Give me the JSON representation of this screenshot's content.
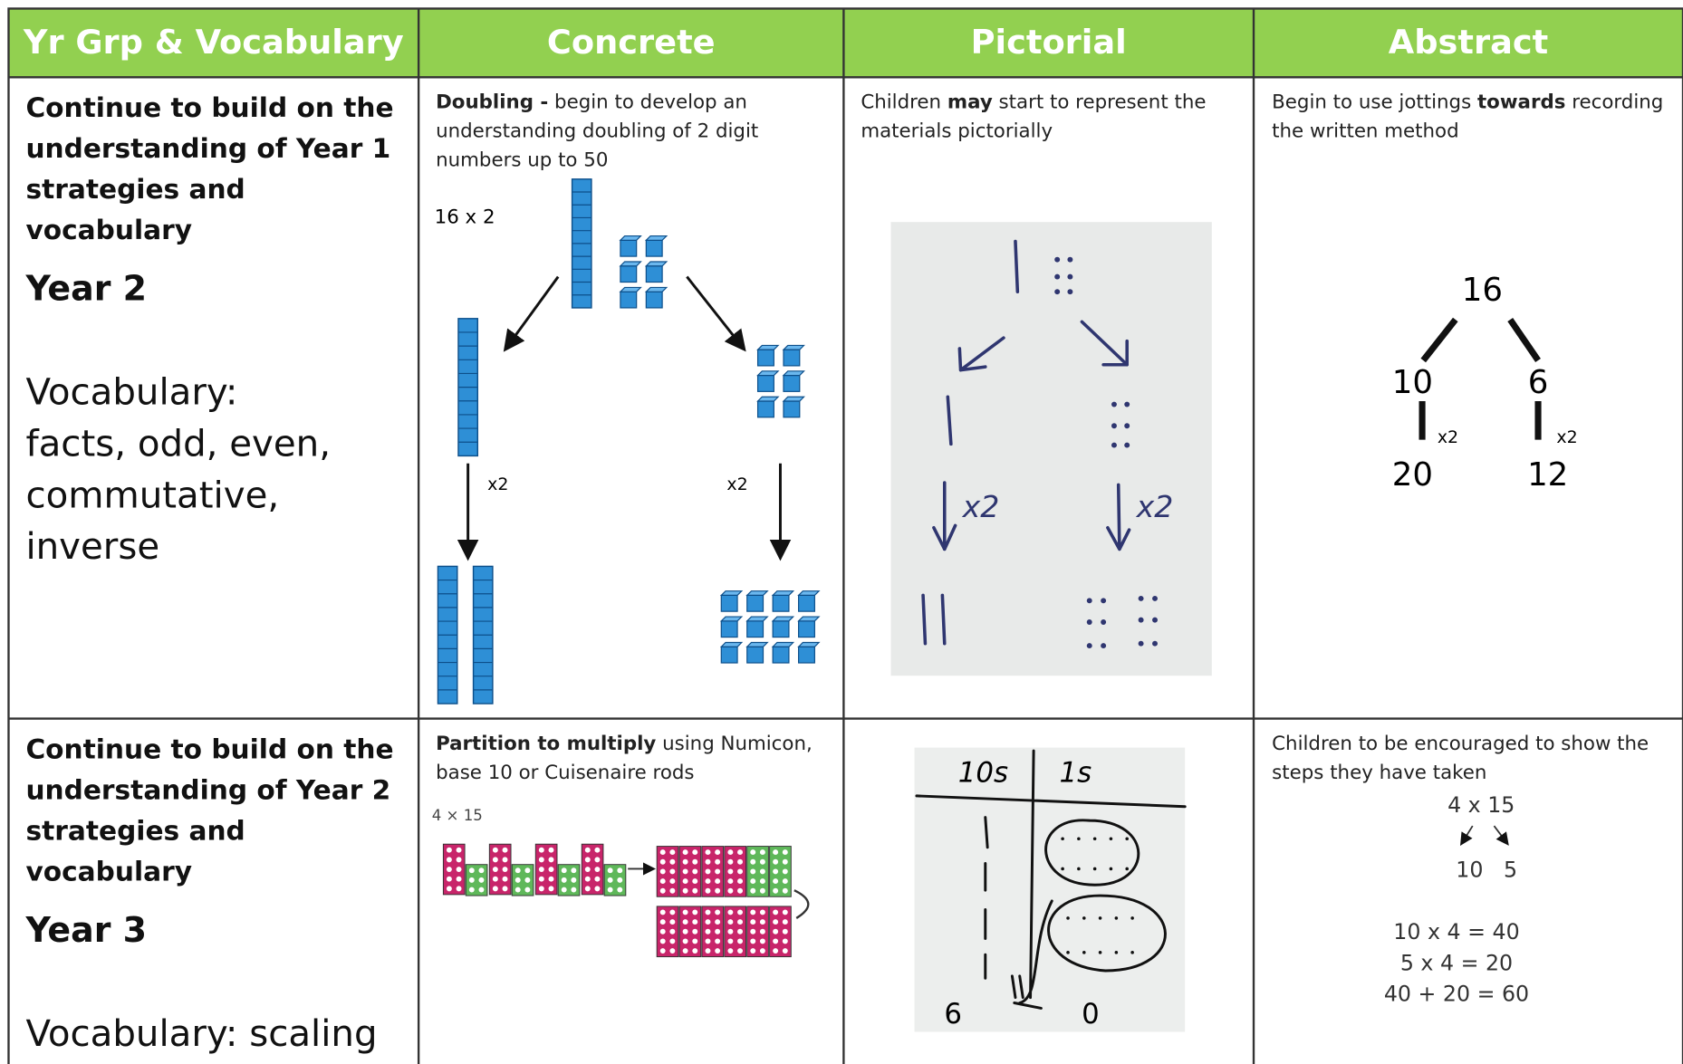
{
  "header": [
    "Yr Grp & Vocabulary",
    "Concrete",
    "Pictorial",
    "Abstract"
  ],
  "rows": [
    {
      "heading": "Continue to build on the understanding of Year 1 strategies and vocabulary",
      "year": "Year 2",
      "vocabulary": "Vocabulary: facts, odd, even, commutative, inverse",
      "concrete": {
        "bold": "Doubling -",
        "text": " begin to develop an understanding doubling of 2 digit numbers up to 50",
        "example": "16 x 2",
        "op_left": "x2",
        "op_right": "x2"
      },
      "pictorial": {
        "before": "Children ",
        "bold": "may",
        "after": " start to represent the materials pictorially",
        "photo_left": "x2",
        "photo_right": "x2"
      },
      "abstract": {
        "before": "Begin to use jottings ",
        "bold": "towards",
        "after": " recording the written method",
        "diagram": {
          "top": "16",
          "left": "10",
          "right": "6",
          "op_left": "x2",
          "op_right": "x2",
          "result_left": "20",
          "result_right": "12"
        }
      }
    },
    {
      "heading": "Continue to build on the understanding of Year 2 strategies and vocabulary",
      "year": "Year 3",
      "vocabulary": "Vocabulary: scaling",
      "concrete": {
        "bold": "Partition to multiply",
        "text": " using Numicon, base 10 or Cuisenaire rods",
        "example": "4 × 15"
      },
      "pictorial": {
        "col_tens": "10s",
        "col_ones": "1s",
        "result_tens": "6",
        "result_ones": "0"
      },
      "abstract": {
        "text": "Children to be encouraged to show the steps they have taken",
        "diagram": {
          "top": "4 x 15",
          "parts": "10   5",
          "lines": [
            "10 x   4 = 40",
            "5 x   4 = 20",
            "40 + 20 = 60"
          ]
        }
      }
    }
  ]
}
